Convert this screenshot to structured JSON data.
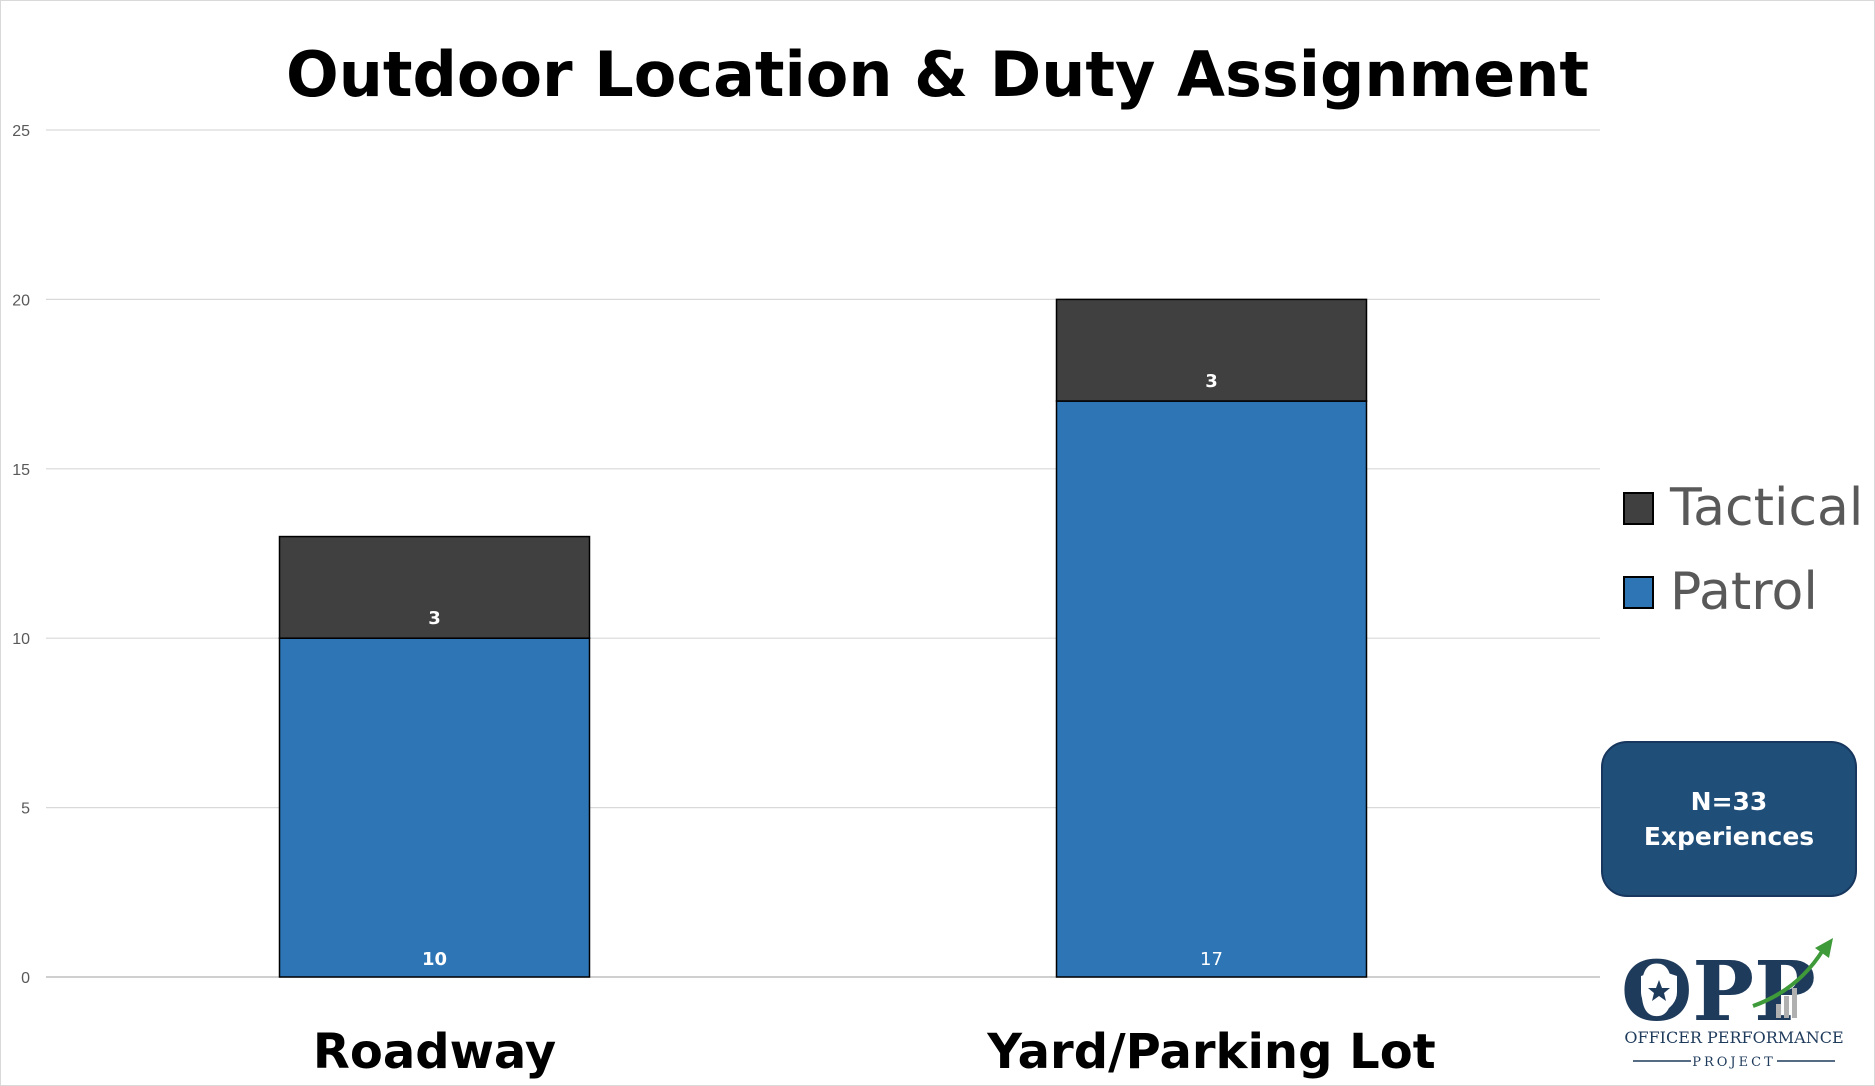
{
  "chart_data": {
    "type": "bar",
    "stacked": true,
    "title": "Outdoor Location & Duty Assignment",
    "categories": [
      "Roadway",
      "Yard/Parking Lot"
    ],
    "series": [
      {
        "name": "Patrol",
        "values": [
          10,
          17
        ],
        "color": "#2e75b6",
        "data_labels": [
          "10",
          "17"
        ]
      },
      {
        "name": "Tactical",
        "values": [
          3,
          3
        ],
        "color": "#404040",
        "data_labels": [
          "3",
          "3"
        ]
      }
    ],
    "ylim": [
      0,
      25
    ],
    "yticks": [
      0,
      5,
      10,
      15,
      20,
      25
    ],
    "xlabel": "",
    "ylabel": "",
    "grid": true,
    "legend_position": "right"
  },
  "legend": {
    "items": [
      {
        "label": "Tactical",
        "color": "#404040"
      },
      {
        "label": "Patrol",
        "color": "#2e75b6"
      }
    ]
  },
  "annotation": {
    "line1": "N=33",
    "line2": "Experiences",
    "color": "#1f4e79"
  },
  "logo": {
    "letters": "OPP",
    "line1": "OFFICER PERFORMANCE",
    "line2": "PROJECT",
    "icon": "police-badge-star-icon",
    "arrow": "growth-arrow-icon",
    "colors": {
      "navy": "#1f3b5c",
      "green": "#3f9a3a"
    }
  }
}
